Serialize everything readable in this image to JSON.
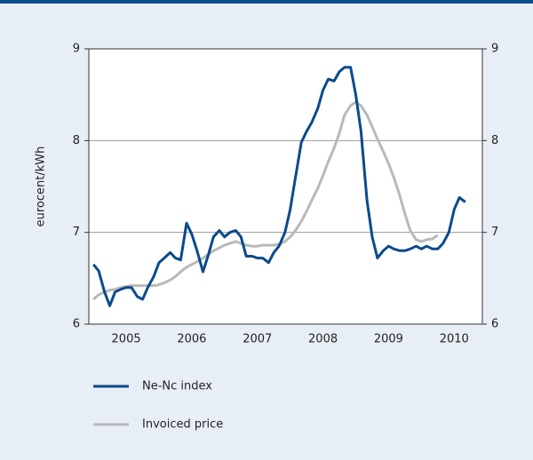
{
  "chart_data": {
    "type": "line",
    "y_label": "eurocent/kWh",
    "x": [
      2005,
      2005.08,
      2005.17,
      2005.25,
      2005.33,
      2005.42,
      2005.5,
      2005.58,
      2005.67,
      2005.75,
      2005.83,
      2005.92,
      2006,
      2006.08,
      2006.17,
      2006.25,
      2006.33,
      2006.42,
      2006.5,
      2006.58,
      2006.67,
      2006.75,
      2006.83,
      2006.92,
      2007,
      2007.08,
      2007.17,
      2007.25,
      2007.33,
      2007.42,
      2007.5,
      2007.58,
      2007.67,
      2007.75,
      2007.83,
      2007.92,
      2008,
      2008.08,
      2008.17,
      2008.25,
      2008.33,
      2008.42,
      2008.5,
      2008.58,
      2008.67,
      2008.75,
      2008.83,
      2008.92,
      2009,
      2009.08,
      2009.17,
      2009.25,
      2009.33,
      2009.42,
      2009.5,
      2009.58,
      2009.67,
      2009.75,
      2009.83,
      2009.92,
      2010,
      2010.08,
      2010.17,
      2010.25,
      2010.33,
      2010.42,
      2010.5,
      2010.58,
      2010.67
    ],
    "series": [
      {
        "name": "Ne-Nc index",
        "color": "#0b4a8b",
        "values": [
          6.65,
          6.58,
          6.35,
          6.2,
          6.35,
          6.38,
          6.4,
          6.4,
          6.3,
          6.27,
          6.4,
          6.52,
          6.67,
          6.72,
          6.78,
          6.72,
          6.7,
          7.1,
          6.98,
          6.8,
          6.57,
          6.75,
          6.95,
          7.02,
          6.95,
          7.0,
          7.02,
          6.95,
          6.74,
          6.74,
          6.72,
          6.72,
          6.67,
          6.78,
          6.85,
          7.0,
          7.25,
          7.6,
          7.98,
          8.1,
          8.2,
          8.35,
          8.55,
          8.67,
          8.65,
          8.75,
          8.8,
          8.8,
          8.5,
          8.1,
          7.35,
          6.95,
          6.72,
          6.8,
          6.85,
          6.82,
          6.8,
          6.8,
          6.82,
          6.85,
          6.82,
          6.85,
          6.82,
          6.82,
          6.88,
          7.0,
          7.25,
          7.38,
          7.33
        ]
      },
      {
        "name": "Invoiced price",
        "color": "#b9b9b9",
        "values": [
          6.27,
          6.32,
          6.35,
          6.37,
          6.38,
          6.4,
          6.41,
          6.42,
          6.42,
          6.42,
          6.42,
          6.42,
          6.43,
          6.45,
          6.48,
          6.52,
          6.57,
          6.62,
          6.65,
          6.68,
          6.72,
          6.76,
          6.8,
          6.83,
          6.86,
          6.88,
          6.9,
          6.88,
          6.86,
          6.85,
          6.85,
          6.86,
          6.86,
          6.86,
          6.87,
          6.9,
          6.95,
          7.02,
          7.12,
          7.23,
          7.35,
          7.48,
          7.62,
          7.77,
          7.92,
          8.08,
          8.28,
          8.38,
          8.42,
          8.38,
          8.28,
          8.15,
          8.02,
          7.88,
          7.75,
          7.6,
          7.4,
          7.2,
          7.02,
          6.92,
          6.9,
          6.92,
          6.93,
          6.97,
          null,
          null,
          null,
          null,
          null
        ]
      }
    ],
    "xlim": [
      2004.93,
      2010.93
    ],
    "xticks": [
      {
        "value": 2005.5,
        "label": "2005"
      },
      {
        "value": 2006.5,
        "label": "2006"
      },
      {
        "value": 2007.5,
        "label": "2007"
      },
      {
        "value": 2008.5,
        "label": "2008"
      },
      {
        "value": 2009.5,
        "label": "2009"
      },
      {
        "value": 2010.5,
        "label": "2010"
      }
    ],
    "ylim": [
      6,
      9
    ],
    "yticks": [
      6,
      7,
      8,
      9
    ],
    "y2lim": [
      6,
      9
    ],
    "y2ticks": [
      6,
      7,
      8,
      9
    ],
    "grid": true
  }
}
